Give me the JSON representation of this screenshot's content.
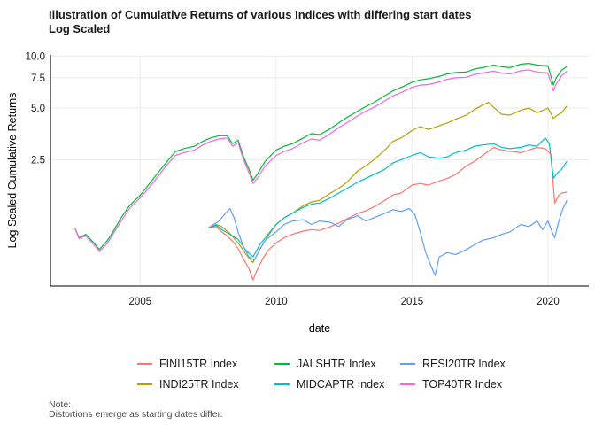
{
  "chart_data": {
    "type": "line",
    "title": "Illustration of Cumulative Returns of various Indices with differing start dates\nLog Scaled",
    "xlabel": "date",
    "ylabel": "Log Scaled Cumulative Returns",
    "y_scale": "log",
    "xlim": [
      2001.7,
      2021.5
    ],
    "ylim": [
      0.46,
      10.2
    ],
    "x_ticks": [
      {
        "value": 2005,
        "label": "2005"
      },
      {
        "value": 2010,
        "label": "2010"
      },
      {
        "value": 2015,
        "label": "2015"
      },
      {
        "value": 2020,
        "label": "2020"
      }
    ],
    "y_ticks": [
      {
        "value": 2.5,
        "label": "2.5"
      },
      {
        "value": 5.0,
        "label": "5.0"
      },
      {
        "value": 7.5,
        "label": "7.5"
      },
      {
        "value": 10.0,
        "label": "10.0"
      }
    ],
    "grid": true,
    "legend_position": "bottom",
    "series": [
      {
        "name": "FINI15TR Index",
        "color": "#F8766D",
        "x": [
          2007.5,
          2007.8,
          2008.0,
          2008.2,
          2008.4,
          2008.6,
          2008.8,
          2009.0,
          2009.15,
          2009.3,
          2009.5,
          2009.7,
          2010.0,
          2010.3,
          2010.6,
          2011.0,
          2011.3,
          2011.6,
          2012.0,
          2012.3,
          2012.6,
          2013.0,
          2013.3,
          2013.6,
          2014.0,
          2014.3,
          2014.6,
          2015.0,
          2015.3,
          2015.6,
          2016.0,
          2016.3,
          2016.6,
          2017.0,
          2017.3,
          2017.6,
          2018.0,
          2018.3,
          2018.6,
          2019.0,
          2019.3,
          2019.6,
          2019.9,
          2020.1,
          2020.25,
          2020.4,
          2020.5,
          2020.7
        ],
        "y": [
          1.0,
          1.02,
          0.95,
          0.9,
          0.84,
          0.76,
          0.66,
          0.58,
          0.5,
          0.57,
          0.66,
          0.74,
          0.82,
          0.88,
          0.92,
          0.96,
          0.98,
          0.97,
          1.02,
          1.07,
          1.13,
          1.22,
          1.26,
          1.33,
          1.45,
          1.56,
          1.6,
          1.78,
          1.82,
          1.78,
          1.88,
          1.95,
          2.05,
          2.3,
          2.45,
          2.65,
          2.95,
          2.85,
          2.8,
          2.75,
          2.85,
          2.95,
          2.9,
          2.7,
          1.4,
          1.55,
          1.6,
          1.62
        ]
      },
      {
        "name": "INDI25TR Index",
        "color": "#B79F00",
        "x": [
          2007.5,
          2007.8,
          2008.0,
          2008.3,
          2008.6,
          2008.9,
          2009.15,
          2009.4,
          2009.7,
          2010.0,
          2010.3,
          2010.6,
          2011.0,
          2011.3,
          2011.6,
          2012.0,
          2012.3,
          2012.6,
          2013.0,
          2013.3,
          2013.6,
          2014.0,
          2014.3,
          2014.6,
          2015.0,
          2015.3,
          2015.6,
          2016.0,
          2016.3,
          2016.6,
          2017.0,
          2017.3,
          2017.6,
          2017.8,
          2018.0,
          2018.3,
          2018.6,
          2019.0,
          2019.3,
          2019.6,
          2020.0,
          2020.2,
          2020.3,
          2020.5,
          2020.7
        ],
        "y": [
          1.0,
          1.05,
          1.02,
          0.93,
          0.82,
          0.7,
          0.63,
          0.75,
          0.9,
          1.05,
          1.15,
          1.22,
          1.35,
          1.42,
          1.45,
          1.6,
          1.7,
          1.85,
          2.15,
          2.3,
          2.5,
          2.85,
          3.2,
          3.35,
          3.7,
          3.9,
          3.75,
          3.95,
          4.1,
          4.3,
          4.55,
          4.9,
          5.2,
          5.4,
          5.05,
          4.6,
          4.55,
          4.85,
          5.0,
          4.7,
          5.0,
          4.35,
          4.5,
          4.7,
          5.15
        ]
      },
      {
        "name": "JALSHTR Index",
        "color": "#00BA38",
        "x": [
          2002.6,
          2002.75,
          2003.0,
          2003.3,
          2003.5,
          2003.8,
          2004.0,
          2004.3,
          2004.6,
          2005.0,
          2005.3,
          2005.6,
          2006.0,
          2006.3,
          2006.6,
          2007.0,
          2007.3,
          2007.6,
          2007.9,
          2008.2,
          2008.4,
          2008.6,
          2008.8,
          2009.0,
          2009.15,
          2009.3,
          2009.6,
          2010.0,
          2010.3,
          2010.6,
          2011.0,
          2011.3,
          2011.6,
          2012.0,
          2012.3,
          2012.6,
          2013.0,
          2013.3,
          2013.6,
          2014.0,
          2014.3,
          2014.6,
          2015.0,
          2015.3,
          2015.6,
          2016.0,
          2016.3,
          2016.6,
          2017.0,
          2017.3,
          2017.6,
          2018.0,
          2018.3,
          2018.6,
          2019.0,
          2019.3,
          2019.6,
          2020.0,
          2020.2,
          2020.3,
          2020.5,
          2020.7
        ],
        "y": [
          1.0,
          0.88,
          0.92,
          0.82,
          0.75,
          0.85,
          0.95,
          1.15,
          1.35,
          1.55,
          1.78,
          2.05,
          2.45,
          2.8,
          2.9,
          3.0,
          3.2,
          3.35,
          3.45,
          3.45,
          3.1,
          3.25,
          2.6,
          2.2,
          1.9,
          2.05,
          2.45,
          2.85,
          3.0,
          3.1,
          3.35,
          3.55,
          3.5,
          3.8,
          4.1,
          4.4,
          4.8,
          5.1,
          5.4,
          5.9,
          6.3,
          6.6,
          7.05,
          7.3,
          7.4,
          7.65,
          7.9,
          8.05,
          8.1,
          8.45,
          8.6,
          8.9,
          8.7,
          8.6,
          9.0,
          9.1,
          8.9,
          8.8,
          6.8,
          7.5,
          8.3,
          8.75
        ]
      },
      {
        "name": "MIDCAPTR Index",
        "color": "#00BFC4",
        "x": [
          2007.5,
          2007.8,
          2008.0,
          2008.3,
          2008.6,
          2008.9,
          2009.15,
          2009.4,
          2009.7,
          2010.0,
          2010.3,
          2010.6,
          2011.0,
          2011.3,
          2011.6,
          2012.0,
          2012.3,
          2012.6,
          2013.0,
          2013.3,
          2013.6,
          2014.0,
          2014.3,
          2014.6,
          2015.0,
          2015.3,
          2015.6,
          2016.0,
          2016.3,
          2016.6,
          2017.0,
          2017.3,
          2017.6,
          2018.0,
          2018.3,
          2018.6,
          2019.0,
          2019.3,
          2019.6,
          2019.9,
          2020.05,
          2020.2,
          2020.35,
          2020.5,
          2020.7
        ],
        "y": [
          1.0,
          1.04,
          0.98,
          0.92,
          0.86,
          0.74,
          0.68,
          0.8,
          0.92,
          1.05,
          1.15,
          1.22,
          1.32,
          1.38,
          1.4,
          1.5,
          1.6,
          1.7,
          1.85,
          1.95,
          2.05,
          2.2,
          2.4,
          2.5,
          2.65,
          2.75,
          2.6,
          2.55,
          2.6,
          2.75,
          2.85,
          3.0,
          3.05,
          3.1,
          2.95,
          2.9,
          2.95,
          3.05,
          3.0,
          3.35,
          3.1,
          1.95,
          2.1,
          2.2,
          2.45
        ]
      },
      {
        "name": "RESI20TR Index",
        "color": "#619CFF",
        "x": [
          2007.5,
          2007.7,
          2007.9,
          2008.1,
          2008.3,
          2008.45,
          2008.6,
          2008.8,
          2009.0,
          2009.2,
          2009.4,
          2009.6,
          2009.8,
          2010.0,
          2010.3,
          2010.6,
          2011.0,
          2011.3,
          2011.6,
          2012.0,
          2012.3,
          2012.6,
          2013.0,
          2013.3,
          2013.6,
          2014.0,
          2014.3,
          2014.6,
          2014.9,
          2015.1,
          2015.3,
          2015.5,
          2015.7,
          2015.85,
          2016.0,
          2016.3,
          2016.6,
          2017.0,
          2017.3,
          2017.6,
          2018.0,
          2018.3,
          2018.6,
          2019.0,
          2019.3,
          2019.6,
          2019.8,
          2020.0,
          2020.15,
          2020.25,
          2020.4,
          2020.55,
          2020.7
        ],
        "y": [
          1.0,
          1.05,
          1.1,
          1.2,
          1.3,
          1.15,
          0.95,
          0.78,
          0.68,
          0.65,
          0.75,
          0.85,
          0.9,
          0.95,
          1.05,
          1.1,
          1.12,
          1.05,
          1.1,
          1.08,
          1.02,
          1.12,
          1.18,
          1.1,
          1.15,
          1.22,
          1.28,
          1.25,
          1.3,
          1.2,
          0.95,
          0.72,
          0.6,
          0.53,
          0.68,
          0.72,
          0.7,
          0.75,
          0.8,
          0.85,
          0.88,
          0.92,
          0.95,
          1.05,
          1.02,
          1.1,
          0.98,
          1.1,
          0.95,
          0.88,
          1.1,
          1.3,
          1.45
        ]
      },
      {
        "name": "TOP40TR Index",
        "color": "#F564E3",
        "x": [
          2002.6,
          2002.75,
          2003.0,
          2003.3,
          2003.5,
          2003.8,
          2004.0,
          2004.3,
          2004.6,
          2005.0,
          2005.3,
          2005.6,
          2006.0,
          2006.3,
          2006.6,
          2007.0,
          2007.3,
          2007.6,
          2007.9,
          2008.2,
          2008.4,
          2008.6,
          2008.8,
          2009.0,
          2009.15,
          2009.3,
          2009.6,
          2010.0,
          2010.3,
          2010.6,
          2011.0,
          2011.3,
          2011.6,
          2012.0,
          2012.3,
          2012.6,
          2013.0,
          2013.3,
          2013.6,
          2014.0,
          2014.3,
          2014.6,
          2015.0,
          2015.3,
          2015.6,
          2016.0,
          2016.3,
          2016.6,
          2017.0,
          2017.3,
          2017.6,
          2018.0,
          2018.3,
          2018.6,
          2019.0,
          2019.3,
          2019.6,
          2020.0,
          2020.2,
          2020.3,
          2020.5,
          2020.7
        ],
        "y": [
          1.0,
          0.87,
          0.9,
          0.8,
          0.73,
          0.82,
          0.92,
          1.1,
          1.3,
          1.5,
          1.7,
          1.95,
          2.35,
          2.65,
          2.75,
          2.85,
          3.05,
          3.2,
          3.3,
          3.35,
          3.0,
          3.15,
          2.5,
          2.1,
          1.82,
          1.95,
          2.3,
          2.65,
          2.8,
          2.9,
          3.15,
          3.3,
          3.25,
          3.55,
          3.85,
          4.1,
          4.5,
          4.8,
          5.05,
          5.5,
          5.9,
          6.15,
          6.6,
          6.8,
          6.85,
          7.1,
          7.35,
          7.5,
          7.55,
          7.85,
          8.0,
          8.2,
          8.0,
          7.9,
          8.25,
          8.35,
          8.1,
          8.0,
          6.3,
          6.9,
          7.7,
          8.2
        ]
      }
    ]
  },
  "note": "Note:\nDistortions emerge as starting dates differ."
}
